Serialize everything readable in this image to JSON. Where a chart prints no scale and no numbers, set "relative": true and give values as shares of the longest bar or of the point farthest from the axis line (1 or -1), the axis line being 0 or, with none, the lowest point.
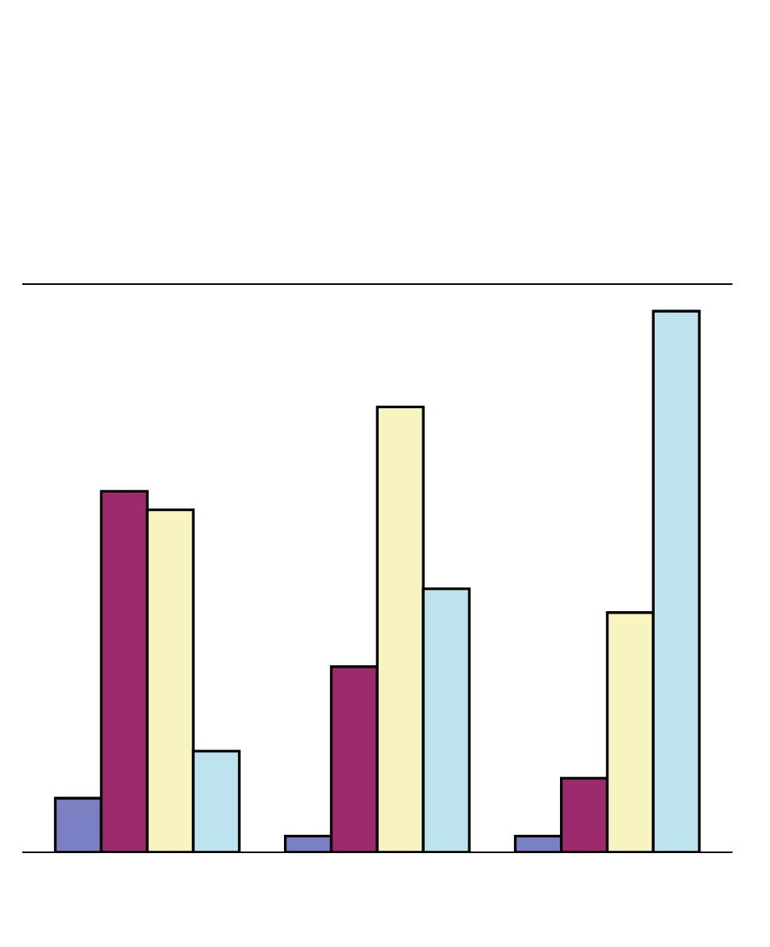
{
  "chart_data": {
    "type": "bar",
    "relative": true,
    "categories": [
      null,
      null,
      null
    ],
    "series": [
      {
        "color": "#7b7fc4",
        "values": [
          0.1,
          0.03,
          0.03
        ]
      },
      {
        "color": "#9e2a6e",
        "values": [
          0.667,
          0.343,
          0.137
        ]
      },
      {
        "color": "#f8f4c0",
        "values": [
          0.633,
          0.823,
          0.443
        ]
      },
      {
        "color": "#bde3ee",
        "values": [
          0.187,
          0.487,
          1.0
        ]
      }
    ]
  }
}
